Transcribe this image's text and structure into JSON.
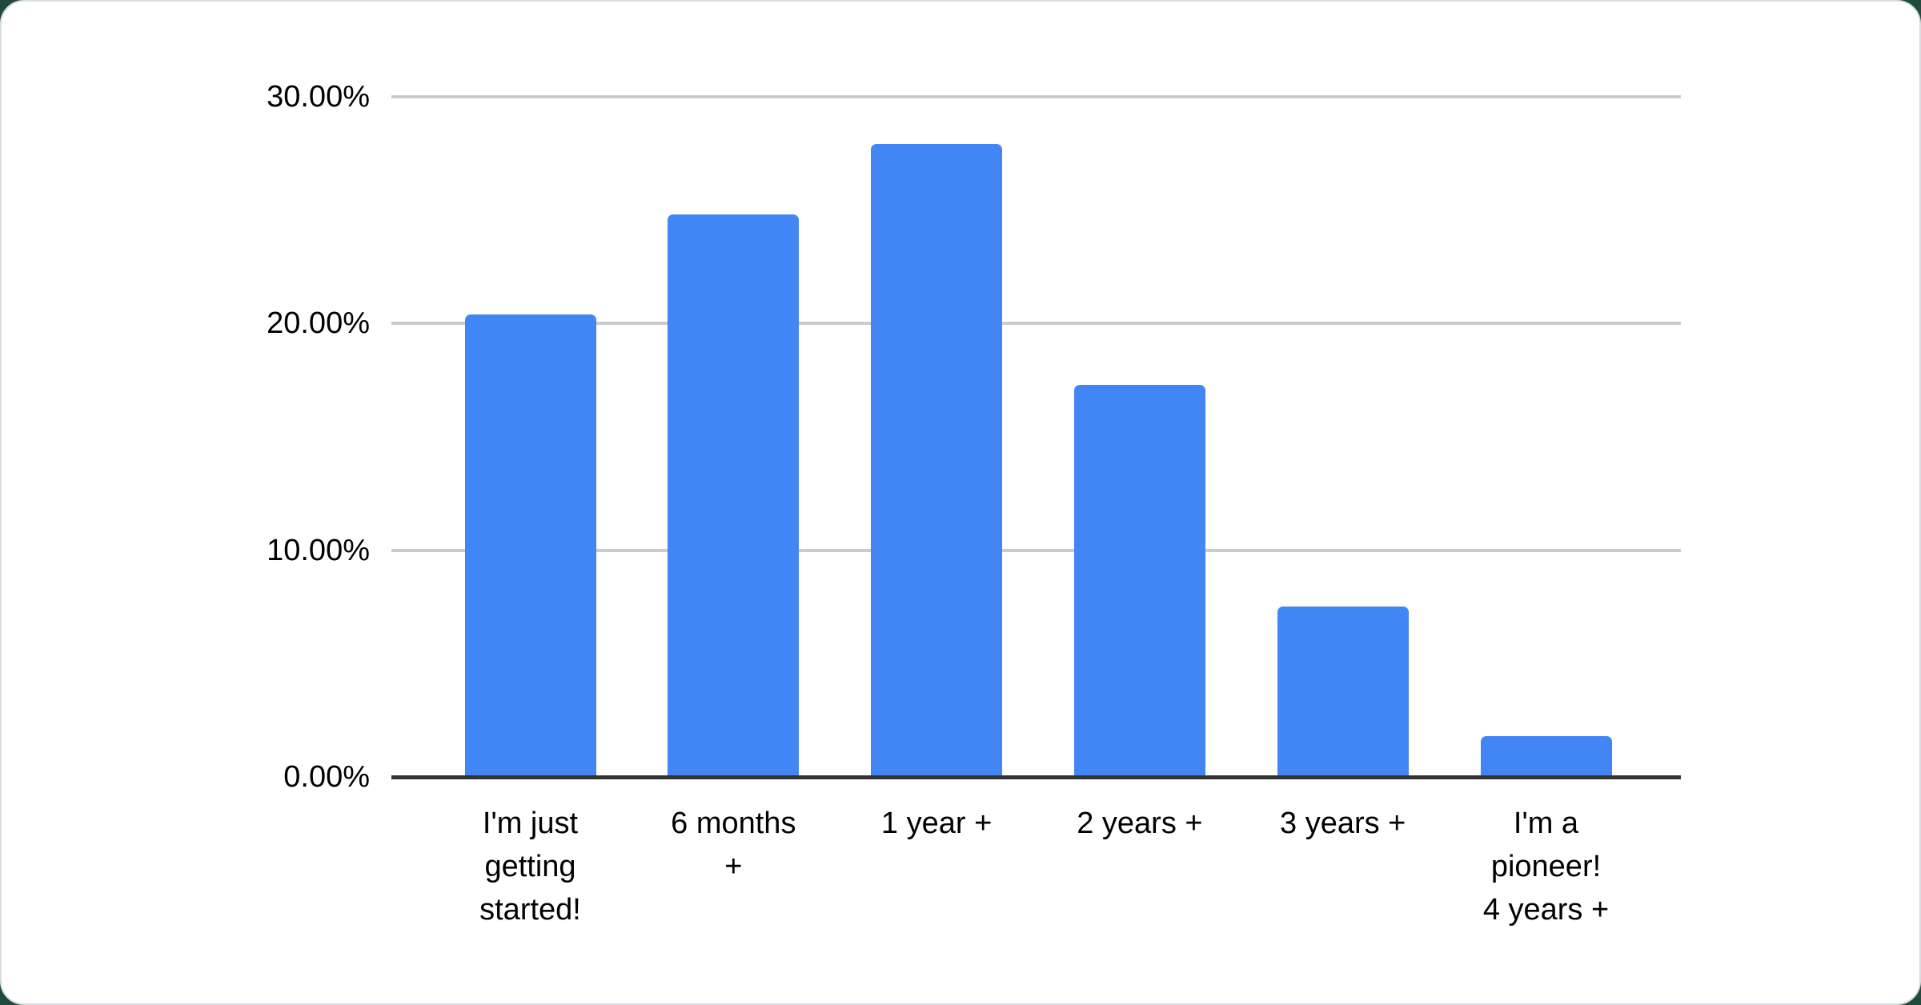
{
  "chart_data": {
    "type": "bar",
    "title": "",
    "xlabel": "",
    "ylabel": "",
    "categories": [
      "I'm just getting started!",
      "6 months +",
      "1 year +",
      "2 years +",
      "3 years +",
      "I'm a pioneer! 4 years +"
    ],
    "label_lines": [
      [
        "I'm just",
        "getting",
        "started!"
      ],
      [
        "6 months",
        "+"
      ],
      [
        "1 year +"
      ],
      [
        "2 years +"
      ],
      [
        "3 years +"
      ],
      [
        "I'm a",
        "pioneer!",
        "4 years +"
      ]
    ],
    "values": [
      20.4,
      24.8,
      27.9,
      17.3,
      7.5,
      1.8
    ],
    "ylim": [
      0,
      30
    ],
    "yticks": [
      {
        "value": 0,
        "label": "0.00%"
      },
      {
        "value": 10,
        "label": "10.00%"
      },
      {
        "value": 20,
        "label": "20.00%"
      },
      {
        "value": 30,
        "label": "30.00%"
      }
    ],
    "grid": true,
    "legend": "none",
    "bar_color": "#4285f4"
  },
  "colors": {
    "page_background": "#1f4a3d",
    "card_background": "#ffffff",
    "card_border": "#d9dde1",
    "gridline": "#cccccc",
    "axis_line": "#333333",
    "axis_text": "#000000"
  }
}
